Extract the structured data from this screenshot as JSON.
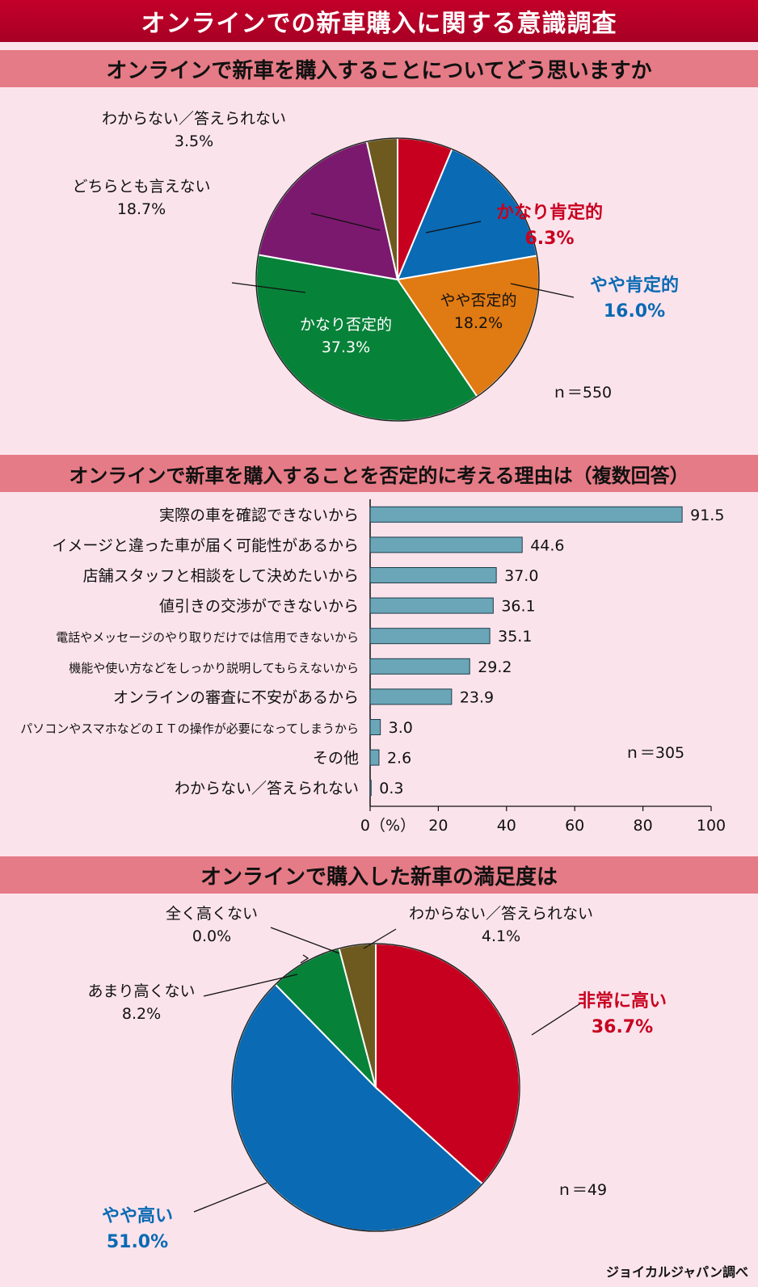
{
  "title": "オンラインでの新車購入に関する意識調査",
  "source": "ジョイカルジャパン調べ",
  "chart_data": [
    {
      "type": "pie",
      "title": "オンラインで新車を購入することについてどう思いますか",
      "n_label": "ｎ＝550",
      "slices": [
        {
          "label": "かなり肯定的",
          "value": 6.3,
          "display": "6.3%",
          "color": "#c8001f"
        },
        {
          "label": "やや肯定的",
          "value": 16.0,
          "display": "16.0%",
          "color": "#0a6ab3"
        },
        {
          "label": "やや否定的",
          "value": 18.2,
          "display": "18.2%",
          "color": "#e07a12"
        },
        {
          "label": "かなり否定的",
          "value": 37.3,
          "display": "37.3%",
          "color": "#078239"
        },
        {
          "label": "どちらとも言えない",
          "value": 18.7,
          "display": "18.7%",
          "color": "#7b196f"
        },
        {
          "label": "わからない／答えられない",
          "value": 3.5,
          "display": "3.5%",
          "color": "#6e5a1f"
        }
      ]
    },
    {
      "type": "bar",
      "title": "オンラインで新車を購入することを否定的に考える理由は（複数回答）",
      "n_label": "ｎ＝305",
      "categories": [
        "実際の車を確認できないから",
        "イメージと違った車が届く可能性があるから",
        "店舗スタッフと相談をして決めたいから",
        "値引きの交渉ができないから",
        "電話やメッセージのやり取りだけでは信用できないから",
        "機能や使い方などをしっかり説明してもらえないから",
        "オンラインの審査に不安があるから",
        "パソコンやスマホなどのＩＴの操作が必要になってしまうから",
        "その他",
        "わからない／答えられない"
      ],
      "values": [
        91.5,
        44.6,
        37.0,
        36.1,
        35.1,
        29.2,
        23.9,
        3.0,
        2.6,
        0.3
      ],
      "value_labels": [
        "91.5",
        "44.6",
        "37.0",
        "36.1",
        "35.1",
        "29.2",
        "23.9",
        "3.0",
        "2.6",
        "0.3"
      ],
      "xlim": [
        0,
        100
      ],
      "ticks": [
        "0（%）",
        "20",
        "40",
        "60",
        "80",
        "100"
      ],
      "bar_color": "#6aa6b8"
    },
    {
      "type": "pie",
      "title": "オンラインで購入した新車の満足度は",
      "n_label": "ｎ＝49",
      "slices": [
        {
          "label": "非常に高い",
          "value": 36.7,
          "display": "36.7%",
          "color": "#c8001f"
        },
        {
          "label": "やや高い",
          "value": 51.0,
          "display": "51.0%",
          "color": "#0a6ab3"
        },
        {
          "label": "あまり高くない",
          "value": 8.2,
          "display": "8.2%",
          "color": "#078239"
        },
        {
          "label": "全く高くない",
          "value": 0.0,
          "display": "0.0%",
          "color": "#078239"
        },
        {
          "label": "わからない／答えられない",
          "value": 4.1,
          "display": "4.1%",
          "color": "#6e5a1f"
        }
      ]
    }
  ]
}
